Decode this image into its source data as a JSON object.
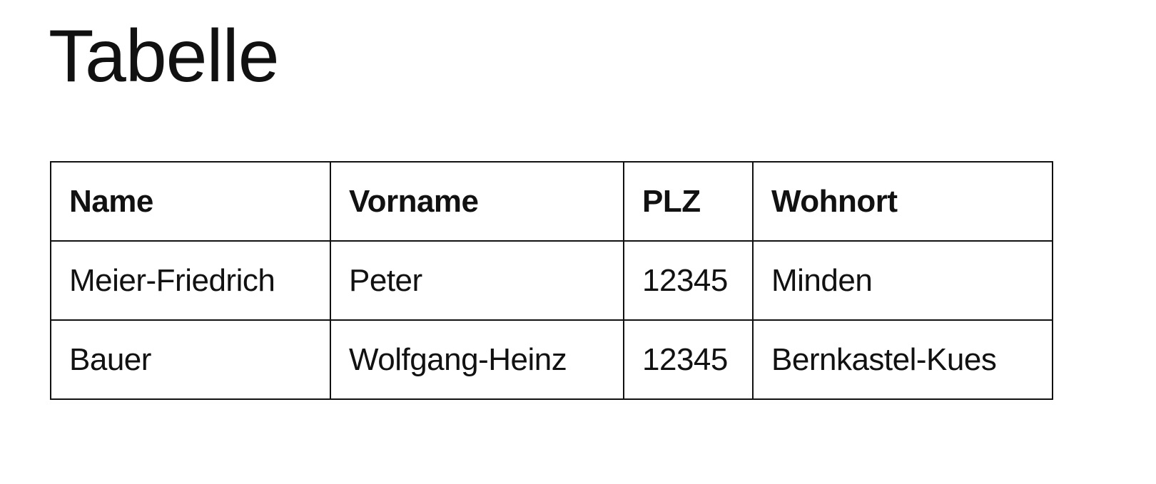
{
  "title": "Tabelle",
  "table": {
    "headers": [
      "Name",
      "Vorname",
      "PLZ",
      "Wohnort"
    ],
    "rows": [
      [
        "Meier-Friedrich",
        "Peter",
        "12345",
        "Minden"
      ],
      [
        "Bauer",
        "Wolfgang-Heinz",
        "12345",
        "Bernkastel-Kues"
      ]
    ]
  }
}
